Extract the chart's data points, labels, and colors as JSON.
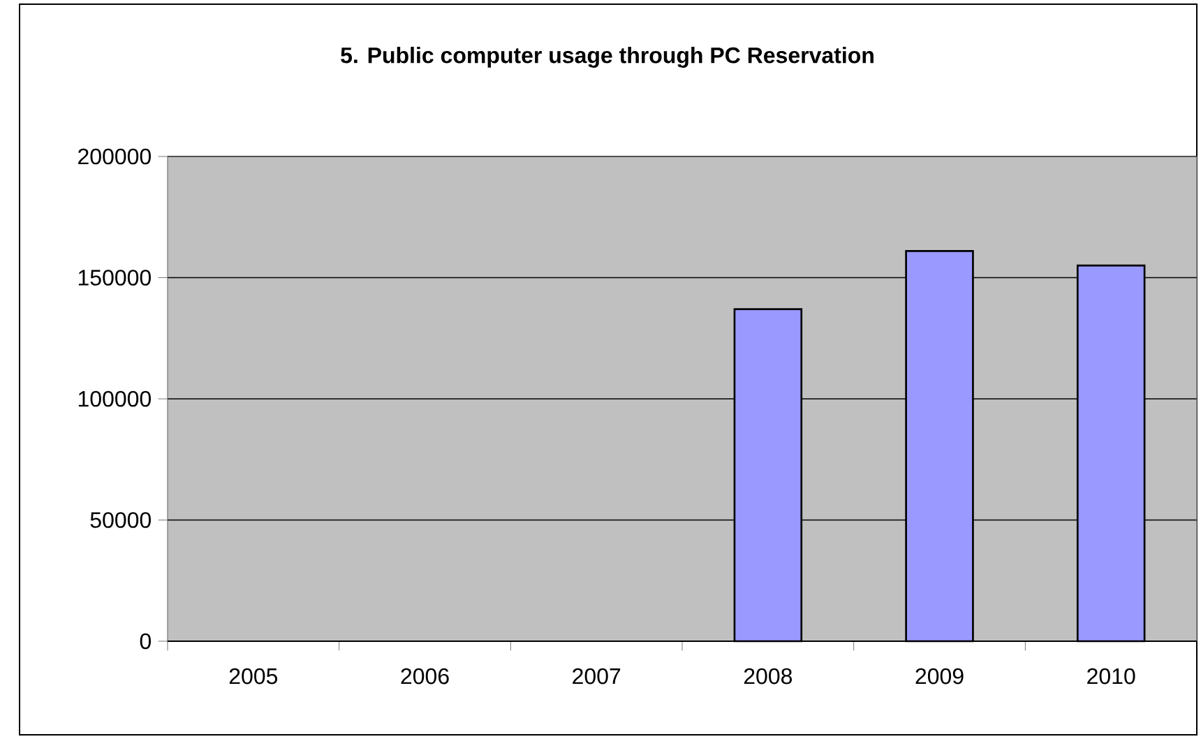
{
  "chart_data": {
    "type": "bar",
    "title": "**5. Public computer usage through PC Reservation**",
    "categories": [
      "2005",
      "2006",
      "2007",
      "2008",
      "2009",
      "2010"
    ],
    "values": [
      null,
      null,
      null,
      137000,
      161000,
      155000
    ],
    "color": "#9999ff",
    "ylim": [
      0,
      200000
    ],
    "yticks": [
      0,
      50000,
      100000,
      150000,
      200000
    ],
    "grid": "y"
  }
}
